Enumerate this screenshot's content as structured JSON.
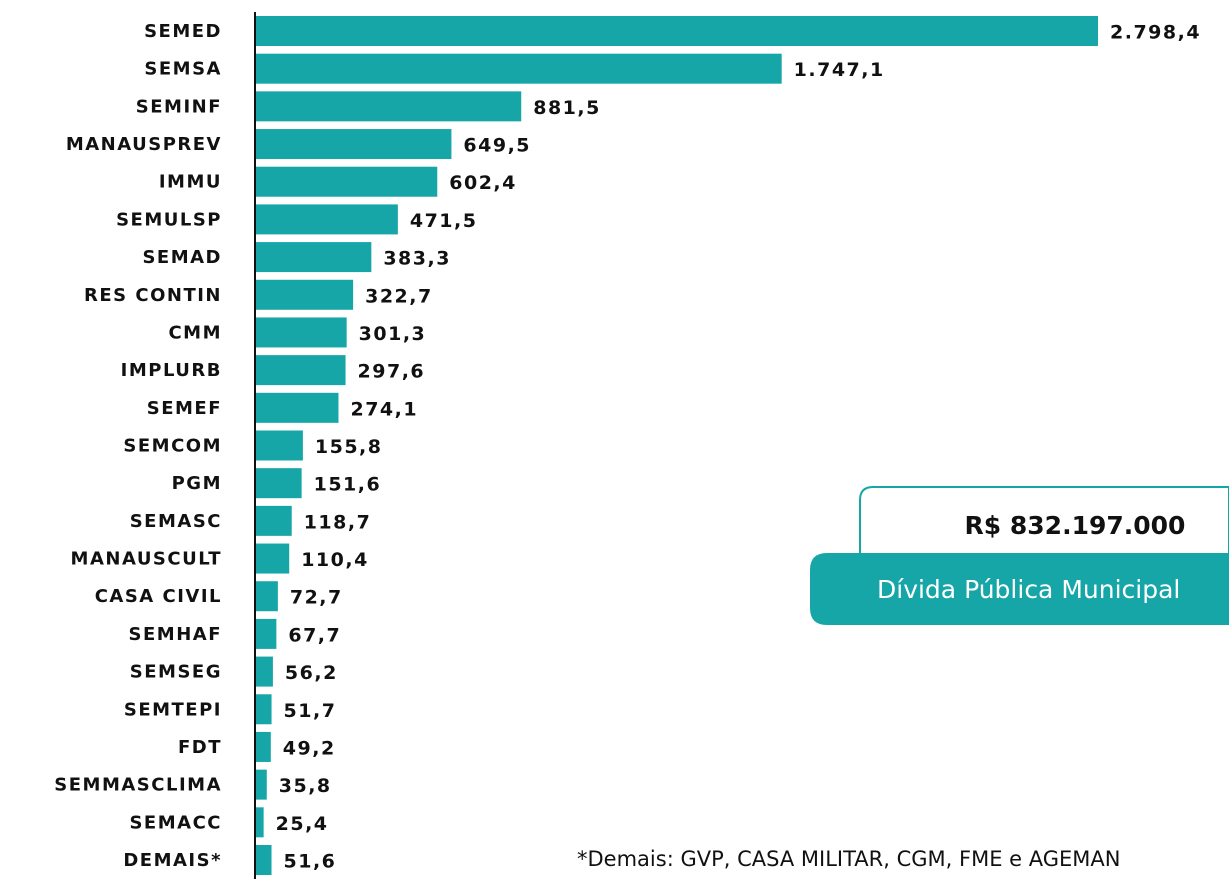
{
  "chart_data": {
    "type": "bar",
    "orientation": "horizontal",
    "color": "#17a6a8",
    "categories": [
      "SEMED",
      "SEMSA",
      "SEMINF",
      "MANAUSPREV",
      "IMMU",
      "SEMULSP",
      "SEMAD",
      "RES CONTIN",
      "CMM",
      "IMPLURB",
      "SEMEF",
      "SEMCOM",
      "PGM",
      "SEMASC",
      "MANAUSCULT",
      "CASA CIVIL",
      "SEMHAF",
      "SEMSEG",
      "SEMTEPI",
      "FDT",
      "SEMMASCLIMA",
      "SEMACC",
      "DEMAIS*"
    ],
    "values": [
      2798.4,
      1747.1,
      881.5,
      649.5,
      602.4,
      471.5,
      383.3,
      322.7,
      301.3,
      297.6,
      274.1,
      155.8,
      151.6,
      118.7,
      110.4,
      72.7,
      67.7,
      56.2,
      51.7,
      49.2,
      35.8,
      25.4,
      51.6
    ],
    "value_labels": [
      "2.798,4",
      "1.747,1",
      "881,5",
      "649,5",
      "602,4",
      "471,5",
      "383,3",
      "322,7",
      "301,3",
      "297,6",
      "274,1",
      "155,8",
      "151,6",
      "118,7",
      "110,4",
      "72,7",
      "67,7",
      "56,2",
      "51,7",
      "49,2",
      "35,8",
      "25,4",
      "51,6"
    ],
    "annotations": {
      "debt_value": "R$ 832.197.000",
      "debt_label": "Dívida Pública Municipal",
      "footnote": "*Demais: GVP, CASA MILITAR, CGM, FME e AGEMAN"
    }
  }
}
